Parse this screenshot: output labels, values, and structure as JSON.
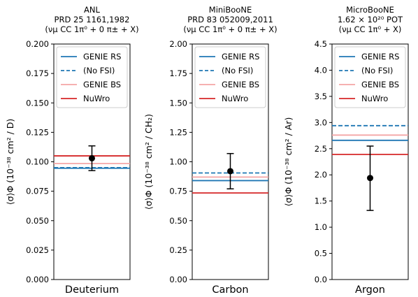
{
  "chart_data": [
    {
      "type": "line",
      "title_lines": [
        "ANL",
        "PRD 25 1161,1982",
        "(νμ CC 1π⁰ + 0 π± + X)"
      ],
      "xlabel": "Deuterium",
      "ylabel": "⟨σ⟩Φ (10⁻³⁸ cm² / D)",
      "ylim": [
        0,
        0.2
      ],
      "yticks": [
        "0.000",
        "0.025",
        "0.050",
        "0.075",
        "0.100",
        "0.125",
        "0.150",
        "0.175",
        "0.200"
      ],
      "series": [
        {
          "name": "GENIE RS",
          "value": 0.0945
        },
        {
          "name": "(No FSI)",
          "value": 0.095
        },
        {
          "name": "GENIE BS",
          "value": 0.0985
        },
        {
          "name": "NuWro",
          "value": 0.105
        }
      ],
      "measurement": {
        "value": 0.103,
        "err_low": 0.0925,
        "err_high": 0.1135
      },
      "legend_position": "top"
    },
    {
      "type": "line",
      "title_lines": [
        "MiniBooNE",
        "PRD 83 052009,2011",
        "(νμ CC 1π⁰ + 0 π± + X)"
      ],
      "xlabel": "Carbon",
      "ylabel": "⟨σ⟩Φ (10⁻³⁸ cm² / CH₂)",
      "ylim": [
        0,
        2.0
      ],
      "yticks": [
        "0.00",
        "0.25",
        "0.50",
        "0.75",
        "1.00",
        "1.25",
        "1.50",
        "1.75",
        "2.00"
      ],
      "series": [
        {
          "name": "GENIE RS",
          "value": 0.84
        },
        {
          "name": "(No FSI)",
          "value": 0.905
        },
        {
          "name": "GENIE BS",
          "value": 0.87
        },
        {
          "name": "NuWro",
          "value": 0.735
        }
      ],
      "measurement": {
        "value": 0.92,
        "err_low": 0.77,
        "err_high": 1.07
      },
      "legend_position": "top"
    },
    {
      "type": "line",
      "title_lines": [
        "MicroBooNE",
        "1.62 × 10²⁰ POT",
        "(νμ CC 1π⁰ + X)"
      ],
      "xlabel": "Argon",
      "ylabel": "⟨σ⟩Φ (10⁻³⁸ cm² / Ar)",
      "ylim": [
        0,
        4.5
      ],
      "yticks": [
        "0.0",
        "0.5",
        "1.0",
        "1.5",
        "2.0",
        "2.5",
        "3.0",
        "3.5",
        "4.0",
        "4.5"
      ],
      "series": [
        {
          "name": "GENIE RS",
          "value": 2.66
        },
        {
          "name": "(No FSI)",
          "value": 2.94
        },
        {
          "name": "GENIE BS",
          "value": 2.76
        },
        {
          "name": "NuWro",
          "value": 2.39
        }
      ],
      "measurement": {
        "value": 1.94,
        "err_low": 1.32,
        "err_high": 2.55
      },
      "legend_position": "top"
    }
  ],
  "styles": {
    "GENIE RS": {
      "color": "#1f77b4",
      "dash": "solid"
    },
    "(No FSI)": {
      "color": "#1f77b4",
      "dash": "dashed"
    },
    "GENIE BS": {
      "color": "#f4a6a6",
      "dash": "solid"
    },
    "NuWro": {
      "color": "#d62728",
      "dash": "solid"
    }
  }
}
